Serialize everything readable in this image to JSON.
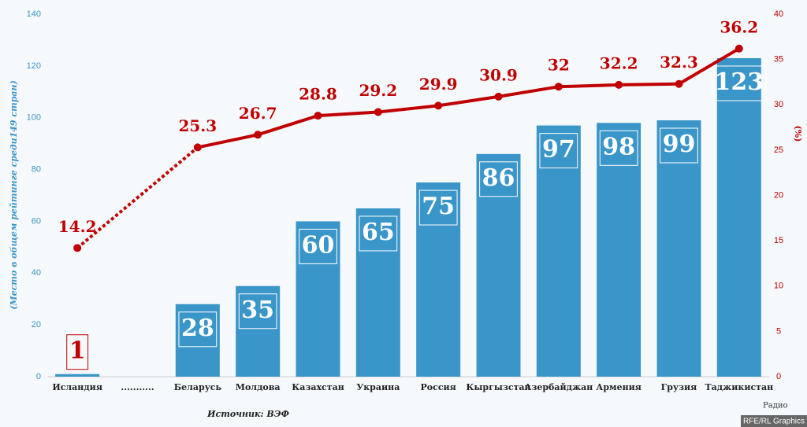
{
  "chart_data": {
    "type": "bar-line",
    "y_label": "(Место в общем рейтинге среди149 стран)",
    "y2_label": "(%)",
    "source": "Источник: ВЭФ",
    "logo": "Радио",
    "credit": "RFE/RL Graphics",
    "categories": [
      "Исландия",
      "...........",
      "Беларусь",
      "Молдова",
      "Казахстан",
      "Украина",
      "Россия",
      "Кыргызстан",
      "Азербайджан",
      "Армения",
      "Грузия",
      "Таджикистан"
    ],
    "series": [
      {
        "type": "bar",
        "color": "#3a96c8",
        "values": [
          1,
          null,
          28,
          35,
          60,
          65,
          75,
          86,
          97,
          98,
          99,
          123
        ]
      },
      {
        "type": "line",
        "axis": "y2",
        "color": "#c00000",
        "values": [
          14.2,
          null,
          25.3,
          26.7,
          28.8,
          29.2,
          29.9,
          30.9,
          32,
          32.2,
          32.3,
          36.2
        ]
      }
    ],
    "ylim": [
      0,
      140
    ],
    "yticks": [
      0,
      20,
      40,
      60,
      80,
      100,
      120,
      140
    ],
    "y2lim": [
      0,
      40
    ],
    "y2ticks": [
      0,
      5,
      10,
      15,
      20,
      25,
      30,
      35,
      40
    ]
  }
}
